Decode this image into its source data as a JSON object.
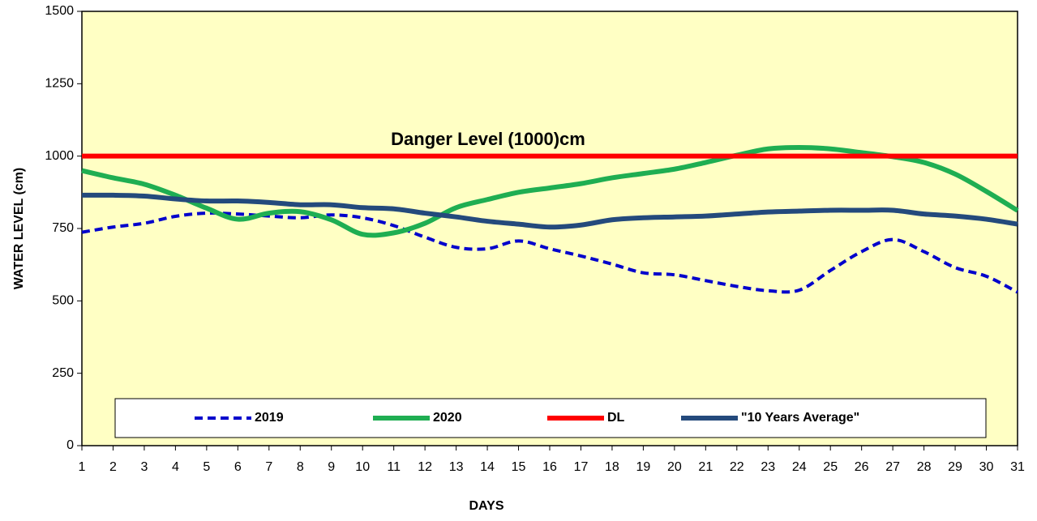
{
  "chart_data": {
    "type": "line",
    "annotation": "Danger Level (1000)cm",
    "xlabel": "DAYS",
    "ylabel": "WATER LEVEL (cm)",
    "x": [
      1,
      2,
      3,
      4,
      5,
      6,
      7,
      8,
      9,
      10,
      11,
      12,
      13,
      14,
      15,
      16,
      17,
      18,
      19,
      20,
      21,
      22,
      23,
      24,
      25,
      26,
      27,
      28,
      29,
      30,
      31
    ],
    "xlim": [
      1,
      31
    ],
    "xticks": [
      1,
      2,
      3,
      4,
      5,
      6,
      7,
      8,
      9,
      10,
      11,
      12,
      13,
      14,
      15,
      16,
      17,
      18,
      19,
      20,
      21,
      22,
      23,
      24,
      25,
      26,
      27,
      28,
      29,
      30,
      31
    ],
    "ylim": [
      0,
      1500
    ],
    "yticks": [
      0,
      250,
      500,
      750,
      1000,
      1250,
      1500
    ],
    "legend": "bottom",
    "series": [
      {
        "name": "2019",
        "color": "#0000cc",
        "dashed": true,
        "values": [
          737,
          755,
          768,
          792,
          803,
          800,
          793,
          787,
          797,
          787,
          760,
          720,
          685,
          680,
          707,
          680,
          655,
          627,
          597,
          590,
          570,
          550,
          535,
          537,
          605,
          670,
          712,
          670,
          615,
          585,
          530
        ]
      },
      {
        "name": "2020",
        "color": "#1fae52",
        "values": [
          950,
          925,
          903,
          865,
          820,
          782,
          803,
          808,
          780,
          730,
          735,
          768,
          822,
          850,
          875,
          890,
          905,
          925,
          940,
          955,
          978,
          1003,
          1025,
          1030,
          1025,
          1012,
          998,
          978,
          938,
          878,
          812
        ]
      },
      {
        "name": "DL",
        "color": "#ff0000",
        "values": [
          1000,
          1000,
          1000,
          1000,
          1000,
          1000,
          1000,
          1000,
          1000,
          1000,
          1000,
          1000,
          1000,
          1000,
          1000,
          1000,
          1000,
          1000,
          1000,
          1000,
          1000,
          1000,
          1000,
          1000,
          1000,
          1000,
          1000,
          1000,
          1000,
          1000,
          1000
        ]
      },
      {
        "name": "\"10 Years Average\"",
        "color": "#244a7c",
        "values": [
          865,
          865,
          862,
          852,
          845,
          845,
          840,
          832,
          832,
          822,
          818,
          803,
          790,
          775,
          765,
          755,
          762,
          780,
          787,
          790,
          793,
          800,
          807,
          810,
          813,
          813,
          813,
          800,
          793,
          782,
          765
        ]
      }
    ]
  }
}
